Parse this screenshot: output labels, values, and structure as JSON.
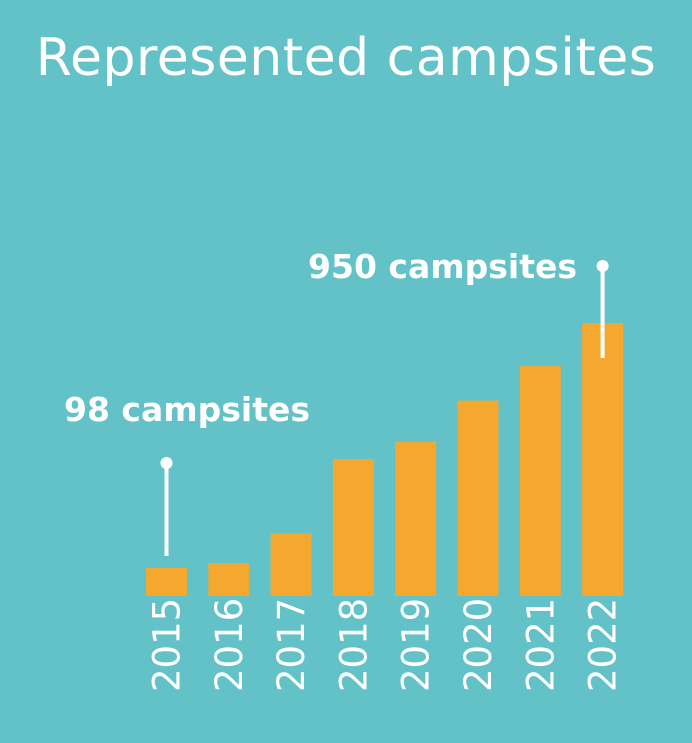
{
  "colors": {
    "background": "#63c2c8",
    "bar": "#f5a830",
    "text": "#ffffff"
  },
  "chart_data": {
    "type": "bar",
    "title": "Represented campsites",
    "xlabel": "",
    "ylabel": "",
    "categories": [
      "2015",
      "2016",
      "2017",
      "2018",
      "2019",
      "2020",
      "2021",
      "2022"
    ],
    "values": [
      98,
      115,
      218,
      476,
      537,
      680,
      800,
      950
    ],
    "ylim": [
      0,
      950
    ],
    "grid": false,
    "annotations": [
      {
        "category": "2015",
        "text": "98 campsites"
      },
      {
        "category": "2022",
        "text": "950 campsites"
      }
    ]
  }
}
